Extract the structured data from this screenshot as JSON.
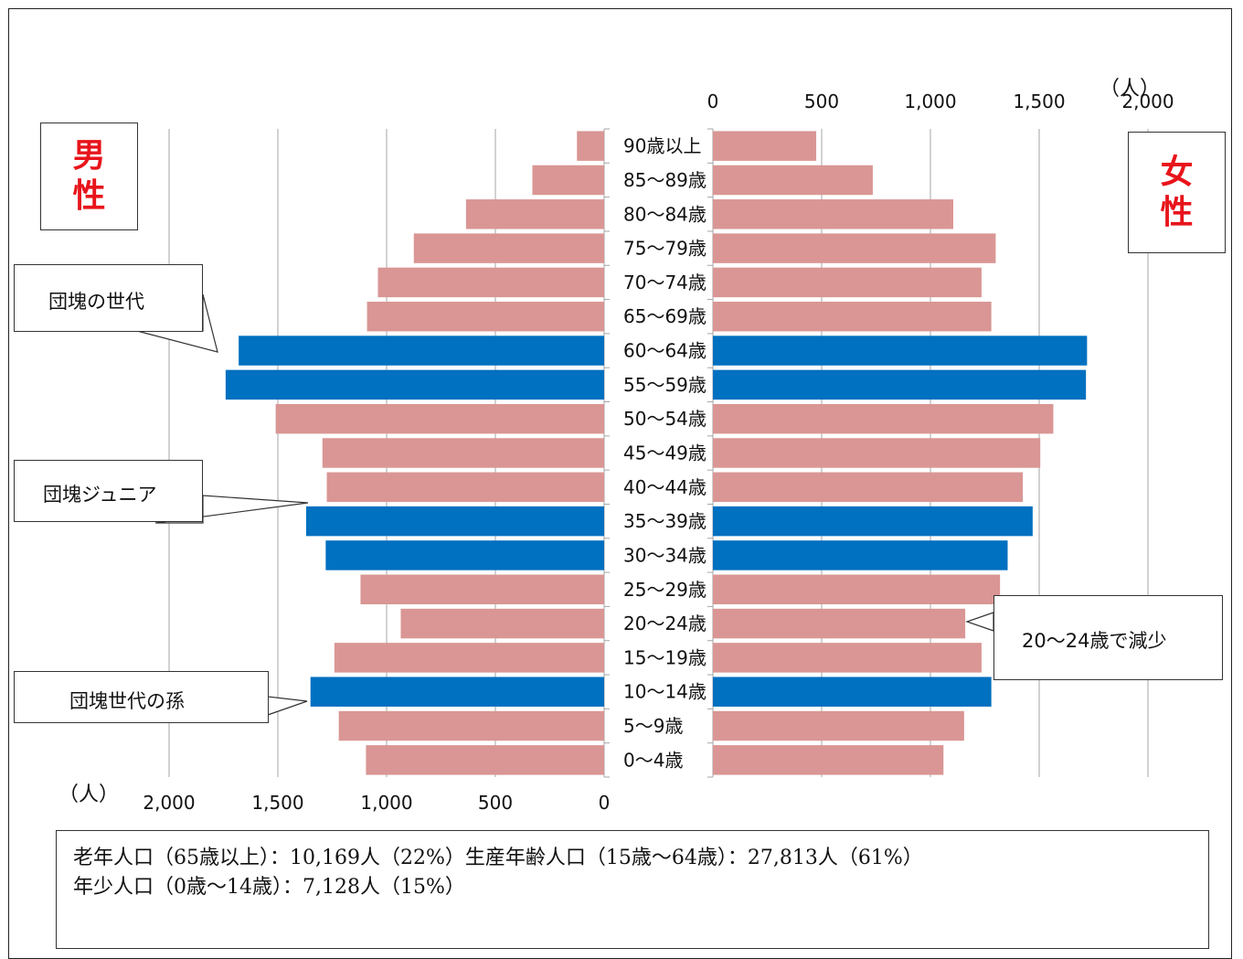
{
  "chart_data": {
    "type": "bar",
    "orientation": "horizontal-pyramid",
    "categories": [
      "90歳以上",
      "85～89歳",
      "80～84歳",
      "75～79歳",
      "70～74歳",
      "65～69歳",
      "60～64歳",
      "55～59歳",
      "50～54歳",
      "45～49歳",
      "40～44歳",
      "35～39歳",
      "30～34歳",
      "25～29歳",
      "20～24歳",
      "15～19歳",
      "10～14歳",
      "5～9歳",
      "0～4歳"
    ],
    "series": [
      {
        "name": "男性",
        "values": [
          125,
          330,
          635,
          875,
          1040,
          1090,
          1680,
          1740,
          1510,
          1295,
          1275,
          1370,
          1280,
          1120,
          935,
          1240,
          1350,
          1220,
          1095
        ]
      },
      {
        "name": "女性",
        "values": [
          475,
          735,
          1105,
          1300,
          1235,
          1280,
          1720,
          1715,
          1565,
          1505,
          1425,
          1470,
          1355,
          1320,
          1160,
          1235,
          1280,
          1155,
          1060
        ]
      }
    ],
    "highlighted_categories": [
      "60～64歳",
      "55～59歳",
      "35～39歳",
      "30～34歳",
      "10～14歳"
    ],
    "xlim": [
      0,
      2000
    ],
    "ticks": [
      "0",
      "500",
      "1,000",
      "1,500",
      "2,000"
    ],
    "unit_label": "（人）",
    "colors": {
      "normal": "#d99694",
      "highlight": "#0070c0"
    }
  },
  "labels": {
    "male": "男性",
    "female": "女性"
  },
  "callouts": {
    "boomers": "団塊の世代",
    "boomer_juniors": "団塊ジュニア",
    "boomer_grandchildren": "団塊世代の孫",
    "decline": "20～24歳で減少"
  },
  "summary": {
    "line1": "老年人口（65歳以上）：10,169人（22%）生産年齢人口（15歳～64歳）：27,813人（61%）",
    "line2": "年少人口（0歳～14歳）：7,128人（15%）"
  }
}
